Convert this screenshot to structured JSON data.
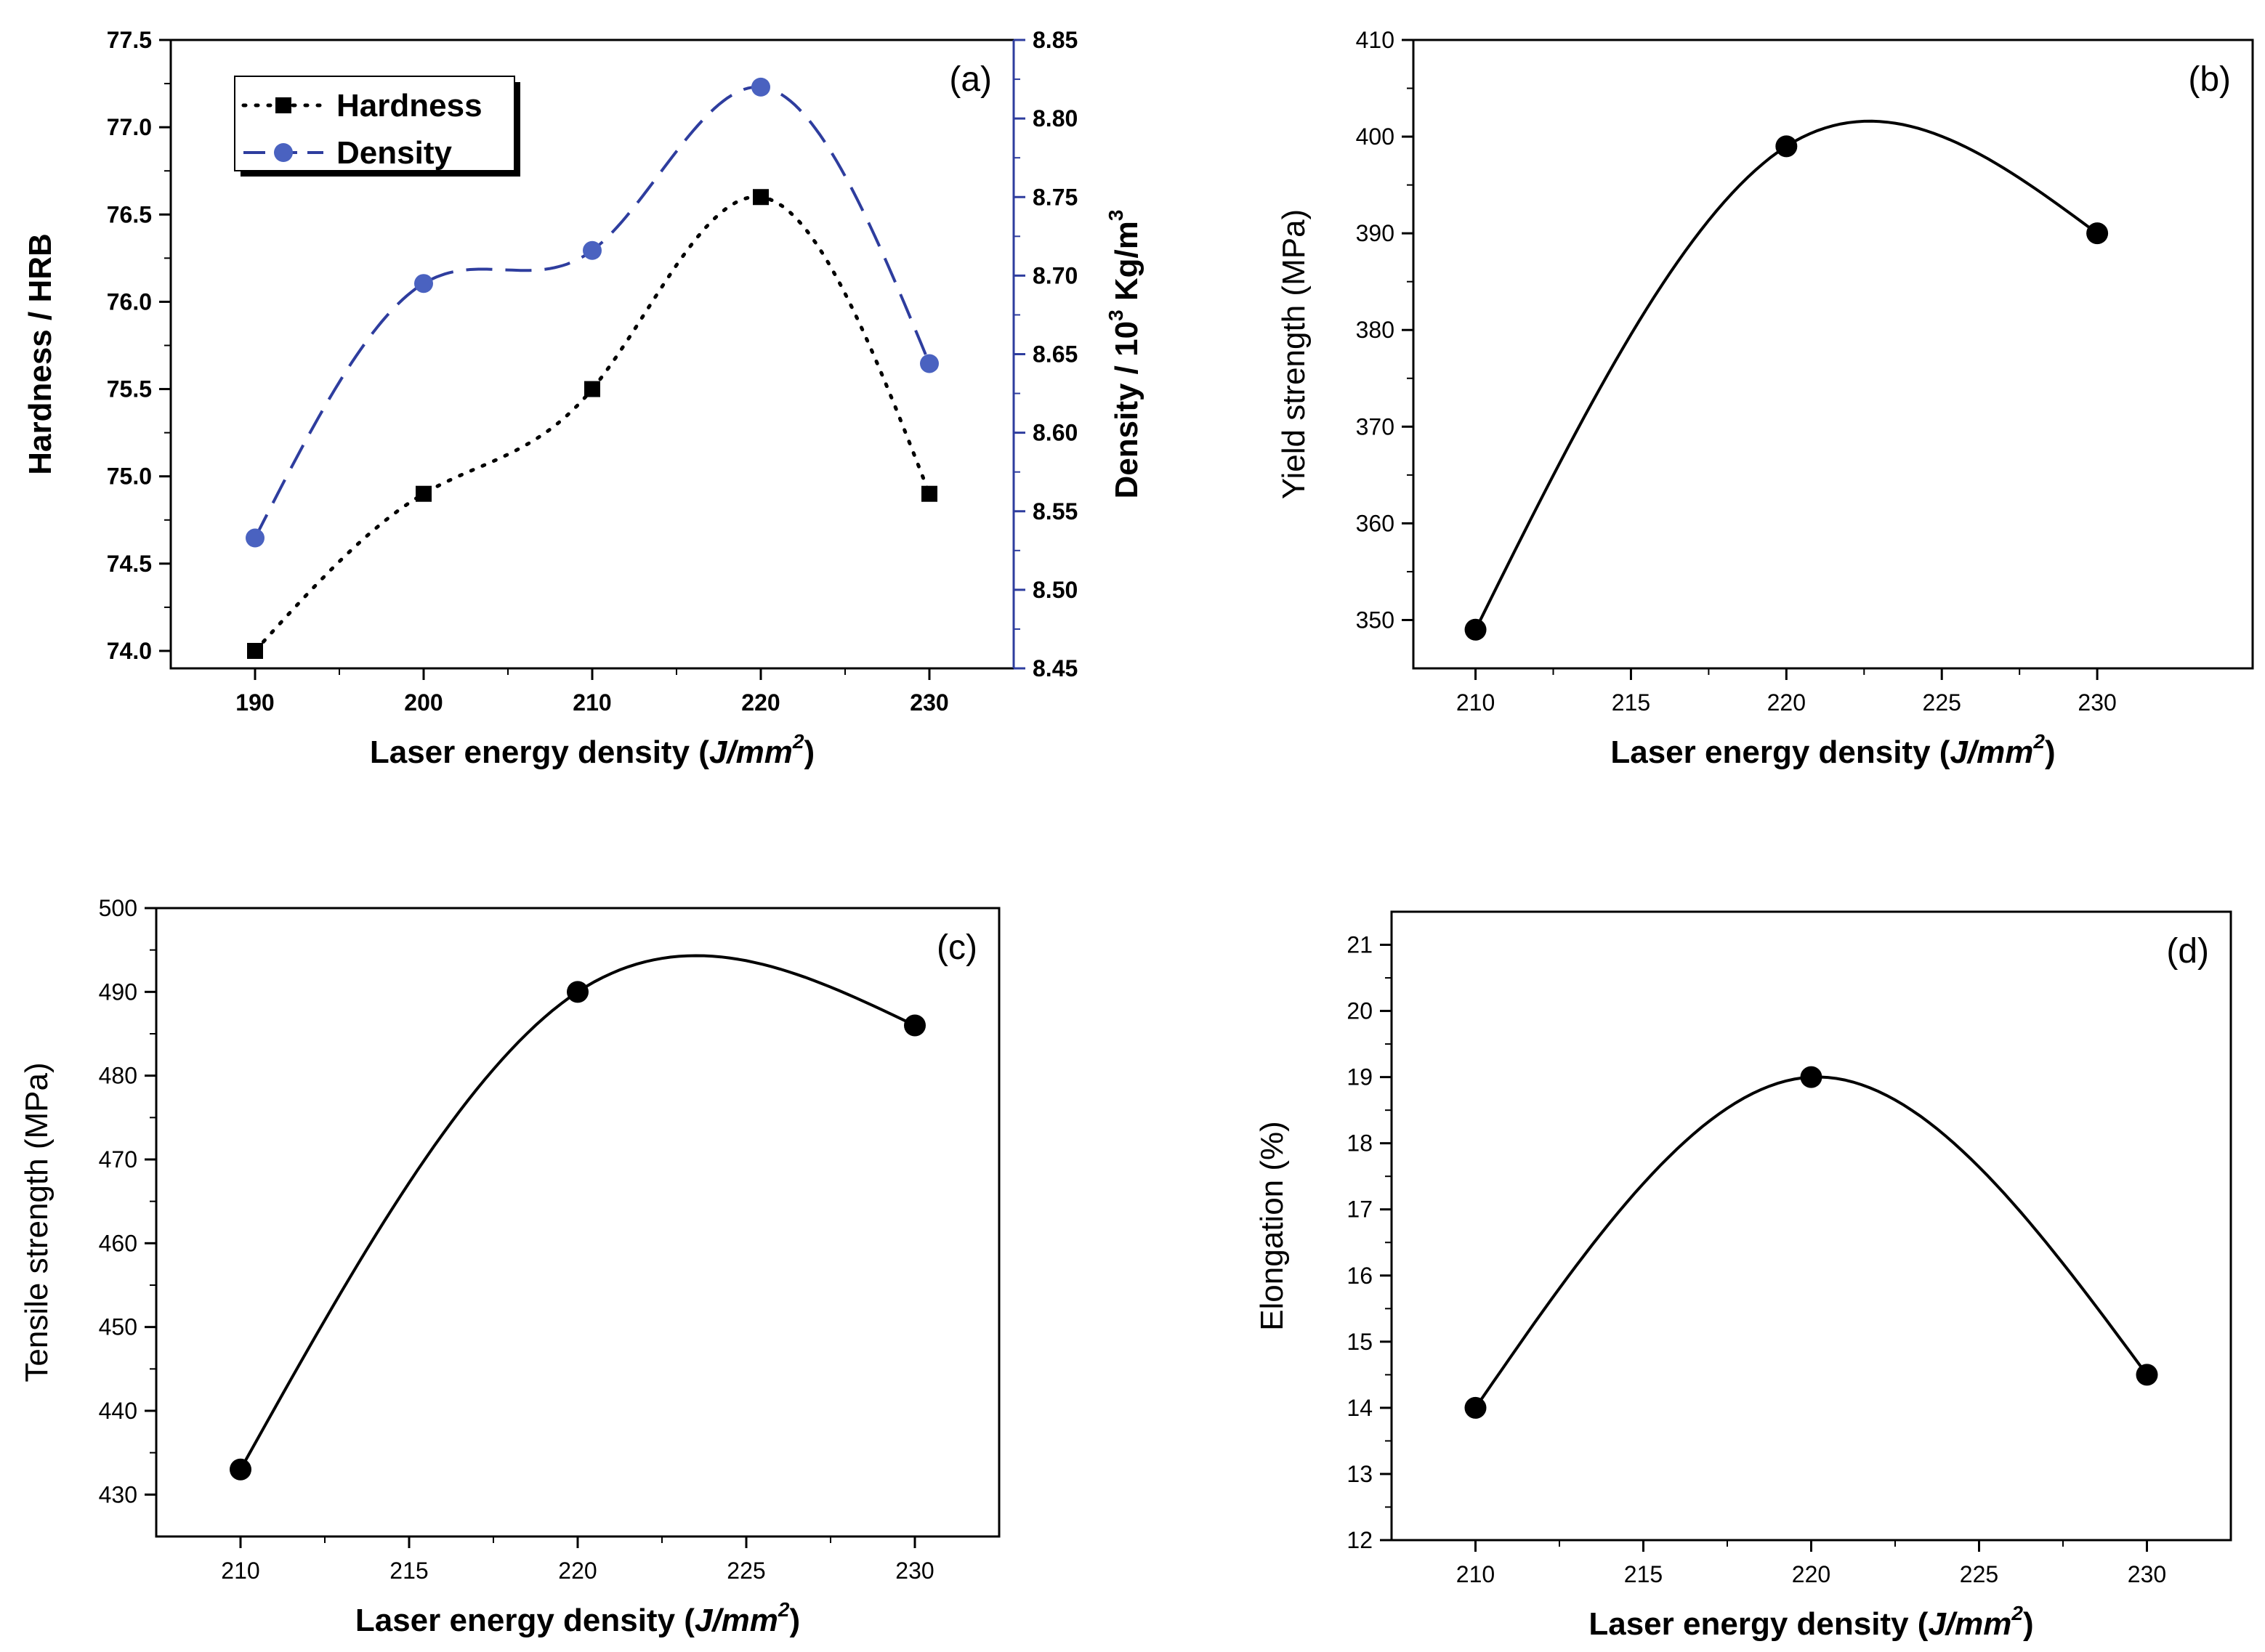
{
  "colors": {
    "axis": "#000000",
    "density_series": "#2e3d9e",
    "density_marker": "#4a62c0",
    "hardness_series": "#000000"
  },
  "chart_data": [
    {
      "id": "a",
      "type": "line",
      "panel_label": "(a)",
      "xlabel": "Laser energy density (J/mm",
      "xlabel_unit_sup": "2",
      "xlabel_close": ")",
      "ylabel": "Hardness / HRB",
      "y2label": "Density / 10",
      "y2label_sup1": "3",
      "y2label_mid": " Kg/m",
      "y2label_sup2": "3",
      "x": [
        190,
        200,
        210,
        220,
        230
      ],
      "xlim": [
        185,
        235
      ],
      "xticks": [
        "190",
        "200",
        "210",
        "220",
        "230"
      ],
      "ylim": [
        73.9,
        77.5
      ],
      "yticks": [
        "74.0",
        "74.5",
        "75.0",
        "75.5",
        "76.0",
        "76.5",
        "77.0",
        "77.5"
      ],
      "y2lim": [
        8.45,
        8.85
      ],
      "y2ticks": [
        "8.45",
        "8.50",
        "8.55",
        "8.60",
        "8.65",
        "8.70",
        "8.75",
        "8.80",
        "8.85"
      ],
      "legend_position": "top-left",
      "series": [
        {
          "name": "Hardness",
          "axis": "left",
          "marker": "square",
          "line": "dotted",
          "values": [
            74.0,
            74.9,
            75.5,
            76.6,
            74.9
          ]
        },
        {
          "name": "Density",
          "axis": "right",
          "marker": "circle",
          "line": "dashed",
          "values": [
            8.533,
            8.695,
            8.716,
            8.82,
            8.644
          ]
        }
      ]
    },
    {
      "id": "b",
      "type": "line",
      "panel_label": "(b)",
      "xlabel": "Laser energy density (J/mm",
      "xlabel_unit_sup": "2",
      "xlabel_close": ")",
      "ylabel": "Yield strength (MPa)",
      "x": [
        210,
        220,
        230
      ],
      "xlim": [
        208,
        235
      ],
      "xticks": [
        "210",
        "215",
        "220",
        "225",
        "230"
      ],
      "ylim": [
        345,
        410
      ],
      "yticks": [
        "350",
        "360",
        "370",
        "380",
        "390",
        "400",
        "410"
      ],
      "series": [
        {
          "values": [
            349,
            399,
            390
          ]
        }
      ]
    },
    {
      "id": "c",
      "type": "line",
      "panel_label": "(c)",
      "xlabel": "Laser energy density (J/mm",
      "xlabel_unit_sup": "2",
      "xlabel_close": ")",
      "ylabel": "Tensile strength (MPa)",
      "x": [
        210,
        220,
        230
      ],
      "xlim": [
        207.5,
        232.5
      ],
      "xticks": [
        "210",
        "215",
        "220",
        "225",
        "230"
      ],
      "ylim": [
        425,
        500
      ],
      "yticks": [
        "430",
        "440",
        "450",
        "460",
        "470",
        "480",
        "490",
        "500"
      ],
      "series": [
        {
          "values": [
            433,
            490,
            486
          ]
        }
      ]
    },
    {
      "id": "d",
      "type": "line",
      "panel_label": "(d)",
      "xlabel": "Laser energy density (J/mm",
      "xlabel_unit_sup": "2",
      "xlabel_close": ")",
      "ylabel": "Elongation (%)",
      "x": [
        210,
        220,
        230
      ],
      "xlim": [
        207.5,
        232.5
      ],
      "xticks": [
        "210",
        "215",
        "220",
        "225",
        "230"
      ],
      "ylim": [
        12,
        21.5
      ],
      "yticks": [
        "12",
        "13",
        "14",
        "15",
        "16",
        "17",
        "18",
        "19",
        "20",
        "21"
      ],
      "series": [
        {
          "values": [
            14,
            19,
            14.5
          ]
        }
      ]
    }
  ]
}
